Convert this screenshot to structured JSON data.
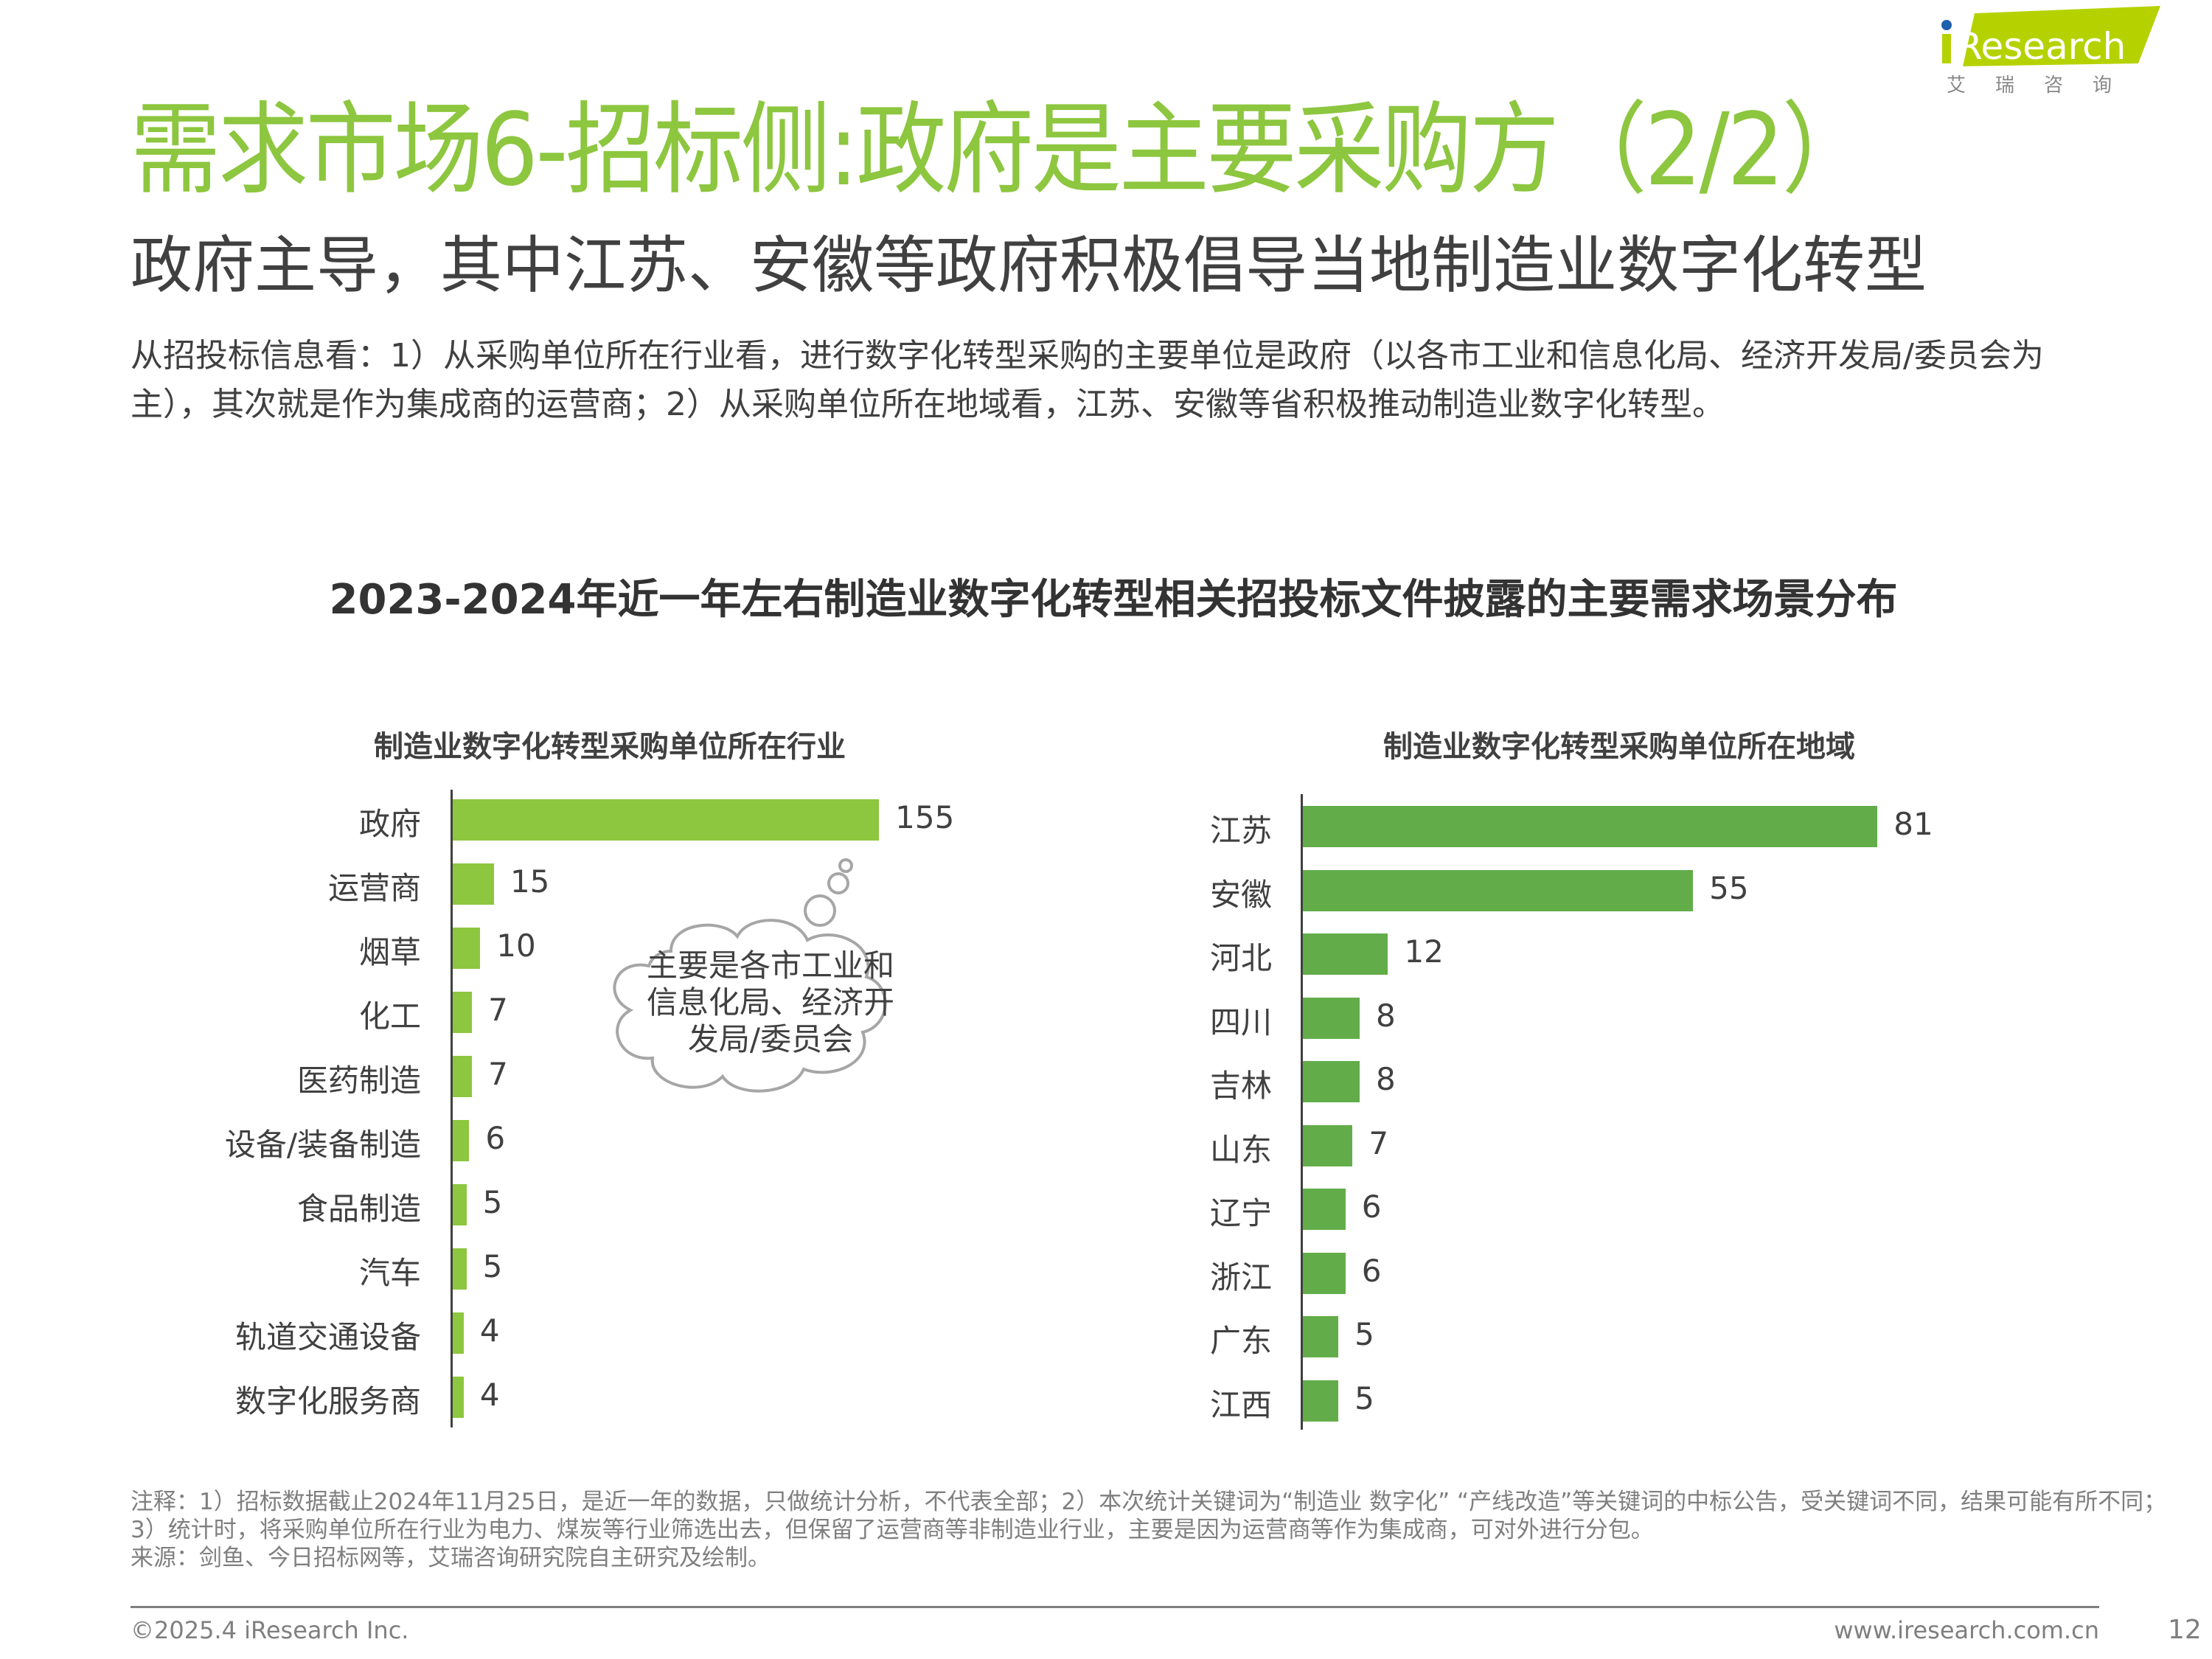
{
  "header": {
    "title": "需求市场6-招标侧:政府是主要采购方（2/2）",
    "subtitle": "政府主导，其中江苏、安徽等政府积极倡导当地制造业数字化转型",
    "description": "从招投标信息看：1）从采购单位所在行业看，进行数字化转型采购的主要单位是政府（以各市工业和信息化局、经济开发局/委员会为主），其次就是作为集成商的运营商；2）从采购单位所在地域看，江苏、安徽等省积极推动制造业数字化转型。"
  },
  "logo": {
    "text": "iResearch",
    "cn": "艾 瑞 咨 询",
    "accent": "#B5D200",
    "dot": "#1F5FAD"
  },
  "colors": {
    "title": "#8DC63F",
    "left_bars": "#8DC63F",
    "right_bars": "#62AD4A"
  },
  "chart_title": "2023-2024年近一年左右制造业数字化转型相关招投标文件披露的主要需求场景分布",
  "chart_data": [
    {
      "type": "bar",
      "orientation": "horizontal",
      "title": "制造业数字化转型采购单位所在行业",
      "categories": [
        "政府",
        "运营商",
        "烟草",
        "化工",
        "医药制造",
        "设备/装备制造",
        "食品制造",
        "汽车",
        "轨道交通设备",
        "数字化服务商"
      ],
      "values": [
        155,
        15,
        10,
        7,
        7,
        6,
        5,
        5,
        4,
        4
      ],
      "color": "#8DC63F",
      "grid": false,
      "annotation": "主要是各市工业和信息化局、经济开发局/委员会"
    },
    {
      "type": "bar",
      "orientation": "horizontal",
      "title": "制造业数字化转型采购单位所在地域",
      "categories": [
        "江苏",
        "安徽",
        "河北",
        "四川",
        "吉林",
        "山东",
        "辽宁",
        "浙江",
        "广东",
        "江西"
      ],
      "values": [
        81,
        55,
        12,
        8,
        8,
        7,
        6,
        6,
        5,
        5
      ],
      "color": "#62AD4A",
      "grid": false
    }
  ],
  "footer": {
    "notes": "注释：1）招标数据截止2024年11月25日，是近一年的数据，只做统计分析，不代表全部；2）本次统计关键词为“制造业 数字化” “产线改造”等关键词的中标公告，受关键词不同，结果可能有所不同；3）统计时，将采购单位所在行业为电力、煤炭等行业筛选出去，但保留了运营商等非制造业行业，主要是因为运营商等作为集成商，可对外进行分包。",
    "source": "来源：剑鱼、今日招标网等，艾瑞咨询研究院自主研究及绘制。",
    "copyright": "©2025.4 iResearch Inc.",
    "website": "www.iresearch.com.cn",
    "page": "12"
  }
}
